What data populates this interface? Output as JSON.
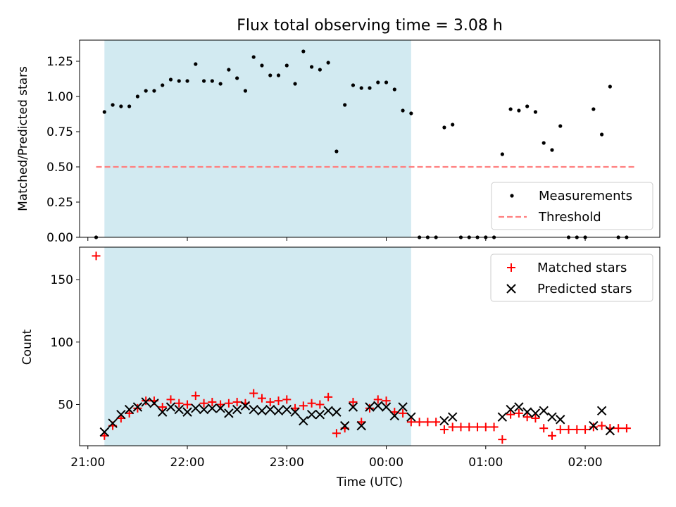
{
  "chart_data": [
    {
      "type": "scatter",
      "title": "Flux total observing time = 3.08 h",
      "ylabel": "Matched/Predicted stars",
      "ylim": [
        0,
        1.4
      ],
      "yticks": [
        "0.00",
        "0.25",
        "0.50",
        "0.75",
        "1.00",
        "1.25"
      ],
      "shaded_interval": {
        "start": "21:10",
        "end": "00:15",
        "color": "#add8e6"
      },
      "legend_position": "lower-right",
      "series": [
        {
          "name": "Measurements",
          "marker": "dot",
          "color": "#000000",
          "x": [
            "21:05",
            "21:10",
            "21:15",
            "21:20",
            "21:25",
            "21:30",
            "21:35",
            "21:40",
            "21:45",
            "21:50",
            "21:55",
            "22:00",
            "22:05",
            "22:10",
            "22:15",
            "22:20",
            "22:25",
            "22:30",
            "22:35",
            "22:40",
            "22:45",
            "22:50",
            "22:55",
            "23:00",
            "23:05",
            "23:10",
            "23:15",
            "23:20",
            "23:25",
            "23:30",
            "23:35",
            "23:40",
            "23:45",
            "23:50",
            "23:55",
            "00:00",
            "00:05",
            "00:10",
            "00:15",
            "00:20",
            "00:25",
            "00:30",
            "00:35",
            "00:40",
            "00:45",
            "00:50",
            "00:55",
            "01:00",
            "01:05",
            "01:10",
            "01:15",
            "01:20",
            "01:25",
            "01:30",
            "01:35",
            "01:40",
            "01:45",
            "01:50",
            "01:55",
            "02:00",
            "02:05",
            "02:10",
            "02:15",
            "02:20",
            "02:25"
          ],
          "y": [
            0.0,
            0.89,
            0.94,
            0.93,
            0.93,
            1.0,
            1.04,
            1.04,
            1.08,
            1.12,
            1.11,
            1.11,
            1.23,
            1.11,
            1.11,
            1.09,
            1.19,
            1.13,
            1.04,
            1.28,
            1.22,
            1.15,
            1.15,
            1.22,
            1.09,
            1.32,
            1.21,
            1.19,
            1.24,
            0.61,
            0.94,
            1.08,
            1.06,
            1.06,
            1.1,
            1.1,
            1.05,
            0.9,
            0.88,
            0.0,
            0.0,
            0.0,
            0.78,
            0.8,
            0.0,
            0.0,
            0.0,
            0.0,
            0.0,
            0.59,
            0.91,
            0.9,
            0.93,
            0.89,
            0.67,
            0.62,
            0.79,
            0.0,
            0.0,
            0.0,
            0.91,
            0.73,
            1.07,
            0.0,
            0.0
          ]
        },
        {
          "name": "Threshold",
          "line": "dashed",
          "color": "#ff7f7f",
          "x": [
            "21:05",
            "02:30"
          ],
          "y": [
            0.5,
            0.5
          ]
        }
      ]
    },
    {
      "type": "scatter",
      "xlabel": "Time (UTC)",
      "ylabel": "Count",
      "ylim": [
        17,
        176
      ],
      "yticks": [
        "50",
        "100",
        "150"
      ],
      "xticks": [
        "21:00",
        "22:00",
        "23:00",
        "00:00",
        "01:00",
        "02:00"
      ],
      "xlim": [
        "20:55",
        "02:45"
      ],
      "shaded_interval": {
        "start": "21:10",
        "end": "00:15",
        "color": "#add8e6"
      },
      "legend_position": "upper-right",
      "series": [
        {
          "name": "Matched stars",
          "marker": "plus",
          "color": "#ff0000",
          "x": [
            "21:05",
            "21:10",
            "21:15",
            "21:20",
            "21:25",
            "21:30",
            "21:35",
            "21:40",
            "21:45",
            "21:50",
            "21:55",
            "22:00",
            "22:05",
            "22:10",
            "22:15",
            "22:20",
            "22:25",
            "22:30",
            "22:35",
            "22:40",
            "22:45",
            "22:50",
            "22:55",
            "23:00",
            "23:05",
            "23:10",
            "23:15",
            "23:20",
            "23:25",
            "23:30",
            "23:35",
            "23:40",
            "23:45",
            "23:50",
            "23:55",
            "00:00",
            "00:05",
            "00:10",
            "00:15",
            "00:20",
            "00:25",
            "00:30",
            "00:35",
            "00:40",
            "00:45",
            "00:50",
            "00:55",
            "01:00",
            "01:05",
            "01:10",
            "01:15",
            "01:20",
            "01:25",
            "01:30",
            "01:35",
            "01:40",
            "01:45",
            "01:50",
            "01:55",
            "02:00",
            "02:05",
            "02:10",
            "02:15",
            "02:20",
            "02:25"
          ],
          "y": [
            169,
            25,
            33,
            39,
            43,
            47,
            53,
            53,
            48,
            54,
            51,
            50,
            57,
            51,
            52,
            50,
            51,
            52,
            51,
            59,
            55,
            52,
            53,
            54,
            47,
            49,
            51,
            50,
            56,
            27,
            31,
            52,
            36,
            47,
            54,
            53,
            44,
            43,
            36,
            36,
            36,
            36,
            30,
            32,
            32,
            32,
            32,
            32,
            32,
            22,
            42,
            43,
            40,
            39,
            31,
            25,
            30,
            30,
            30,
            30,
            32,
            33,
            31,
            31,
            31
          ]
        },
        {
          "name": "Predicted stars",
          "marker": "x",
          "color": "#000000",
          "x": [
            "21:10",
            "21:15",
            "21:20",
            "21:25",
            "21:30",
            "21:35",
            "21:40",
            "21:45",
            "21:50",
            "21:55",
            "22:00",
            "22:05",
            "22:10",
            "22:15",
            "22:20",
            "22:25",
            "22:30",
            "22:35",
            "22:40",
            "22:45",
            "22:50",
            "22:55",
            "23:00",
            "23:05",
            "23:10",
            "23:15",
            "23:20",
            "23:25",
            "23:30",
            "23:35",
            "23:40",
            "23:45",
            "23:50",
            "23:55",
            "00:00",
            "00:05",
            "00:10",
            "00:15",
            "00:35",
            "00:40",
            "01:10",
            "01:15",
            "01:20",
            "01:25",
            "01:30",
            "01:35",
            "01:40",
            "01:45",
            "02:05",
            "02:10",
            "02:15"
          ],
          "y": [
            28,
            35,
            42,
            46,
            48,
            52,
            51,
            44,
            48,
            46,
            44,
            47,
            46,
            47,
            47,
            43,
            46,
            49,
            46,
            45,
            46,
            45,
            46,
            44,
            37,
            42,
            42,
            45,
            44,
            33,
            48,
            33,
            48,
            49,
            48,
            41,
            48,
            40,
            37,
            40,
            40,
            46,
            48,
            44,
            43,
            45,
            40,
            38,
            33,
            45,
            29
          ]
        }
      ]
    }
  ]
}
